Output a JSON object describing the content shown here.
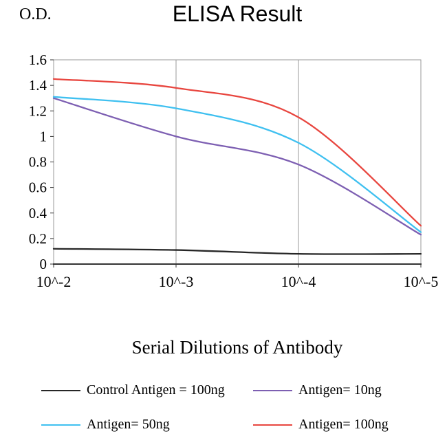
{
  "page": {
    "background": "#ffffff"
  },
  "chart_data": {
    "type": "line",
    "title": "ELISA Result",
    "y_axis_label": "O.D.",
    "xlabel": "Serial Dilutions of Antibody",
    "categories": [
      "10^-2",
      "10^-3",
      "10^-4",
      "10^-5"
    ],
    "ylim": [
      0,
      1.6
    ],
    "yticks": [
      0,
      0.2,
      0.4,
      0.6,
      0.8,
      1,
      1.2,
      1.4,
      1.6
    ],
    "ytick_labels": [
      "0",
      "0.2",
      "0.4",
      "0.6",
      "0.8",
      "1",
      "1.2",
      "1.4",
      "1.6"
    ],
    "grid": "vertical-only",
    "legend_position": "bottom",
    "frame_color": "#999999",
    "axis_color": "#333333",
    "series": [
      {
        "name": "Control Antigen = 100ng",
        "color": "#262626",
        "values": [
          0.12,
          0.11,
          0.08,
          0.08
        ]
      },
      {
        "name": "Antigen= 10ng",
        "color": "#7d5fb2",
        "values": [
          1.3,
          1.0,
          0.78,
          0.23
        ]
      },
      {
        "name": "Antigen= 50ng",
        "color": "#3fc0f0",
        "values": [
          1.31,
          1.22,
          0.95,
          0.25
        ]
      },
      {
        "name": "Antigen= 100ng",
        "color": "#e8463f",
        "values": [
          1.45,
          1.38,
          1.15,
          0.3
        ]
      }
    ]
  }
}
